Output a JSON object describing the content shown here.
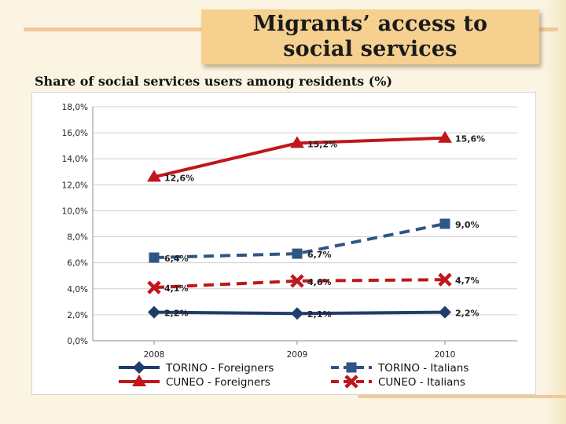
{
  "slide": {
    "title_line1": "Migrants’ access to",
    "title_line2": "social services",
    "subtitle": "Share of social services users among residents (%)"
  },
  "chart_data": {
    "type": "line",
    "title": "",
    "xlabel": "",
    "ylabel": "",
    "categories": [
      "2008",
      "2009",
      "2010"
    ],
    "ylim": [
      0,
      18
    ],
    "ytick_labels": [
      "0,0%",
      "2,0%",
      "4,0%",
      "6,0%",
      "8,0%",
      "10,0%",
      "12,0%",
      "14,0%",
      "16,0%",
      "18,0%"
    ],
    "grid": true,
    "legend_position": "bottom",
    "series": [
      {
        "key": "torino_foreigners",
        "name": "TORINO - Foreigners",
        "values": [
          2.2,
          2.1,
          2.2
        ],
        "labels": [
          "2,2%",
          "2,1%",
          "2,2%"
        ],
        "color": "#1f3d6b",
        "dash": "solid",
        "marker": "diamond"
      },
      {
        "key": "torino_italians",
        "name": "TORINO - Italians",
        "values": [
          6.4,
          6.7,
          9.0
        ],
        "labels": [
          "6,4%",
          "6,7%",
          "9,0%"
        ],
        "color": "#2e5683",
        "dash": "dashed",
        "marker": "square"
      },
      {
        "key": "cuneo_foreigners",
        "name": "CUNEO - Foreigners",
        "values": [
          12.6,
          15.2,
          15.6
        ],
        "labels": [
          "12,6%",
          "15,2%",
          "15,6%"
        ],
        "color": "#c0161c",
        "dash": "solid",
        "marker": "triangle"
      },
      {
        "key": "cuneo_italians",
        "name": "CUNEO - Italians",
        "values": [
          4.1,
          4.6,
          4.7
        ],
        "labels": [
          "4,1%",
          "4,6%",
          "4,7%"
        ],
        "color": "#c0161c",
        "dash": "dashed",
        "marker": "x"
      }
    ]
  }
}
